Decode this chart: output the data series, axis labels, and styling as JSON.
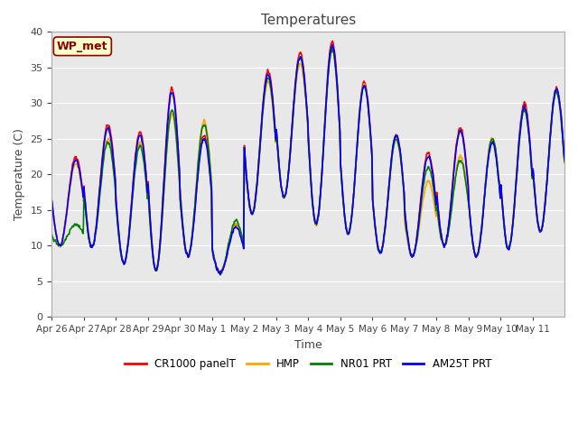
{
  "title": "Temperatures",
  "xlabel": "Time",
  "ylabel": "Temperature (C)",
  "ylim": [
    0,
    40
  ],
  "background_color": "#e8e8e8",
  "annotation_text": "WP_met",
  "annotation_color": "#8B0000",
  "annotation_bg": "#ffffcc",
  "series_colors": [
    "red",
    "orange",
    "green",
    "blue"
  ],
  "series_labels": [
    "CR1000 panelT",
    "HMP",
    "NR01 PRT",
    "AM25T PRT"
  ],
  "xtick_labels": [
    "Apr 26",
    "Apr 27",
    "Apr 28",
    "Apr 29",
    "Apr 30",
    "May 1",
    "May 2",
    "May 3",
    "May 4",
    "May 5",
    "May 6",
    "May 7",
    "May 8",
    "May 9",
    "May 10",
    "May 11"
  ],
  "num_days": 16,
  "line_width": 1.2,
  "daily_min": [
    10.0,
    9.8,
    7.5,
    6.5,
    8.5,
    6.2,
    14.5,
    16.8,
    13.0,
    11.7,
    9.0,
    8.5,
    10.0,
    8.5,
    9.5,
    12.0
  ],
  "daily_max_r": [
    22.5,
    27.0,
    26.0,
    32.0,
    25.5,
    13.0,
    34.5,
    37.0,
    38.5,
    33.0,
    25.5,
    23.0,
    26.5,
    25.0,
    30.0,
    32.0
  ],
  "daily_max_y": [
    21.5,
    25.0,
    24.5,
    28.5,
    27.5,
    13.0,
    33.0,
    35.5,
    37.5,
    32.5,
    25.0,
    19.0,
    22.5,
    25.0,
    29.5,
    31.5
  ],
  "daily_max_g": [
    13.0,
    24.5,
    24.0,
    29.0,
    27.0,
    13.5,
    33.5,
    36.5,
    37.5,
    32.5,
    25.0,
    21.0,
    22.0,
    25.0,
    29.0,
    31.5
  ],
  "daily_max_b": [
    22.0,
    26.5,
    25.5,
    31.5,
    25.0,
    12.5,
    34.0,
    36.5,
    38.0,
    32.5,
    25.5,
    22.5,
    26.0,
    24.5,
    29.5,
    32.0
  ]
}
